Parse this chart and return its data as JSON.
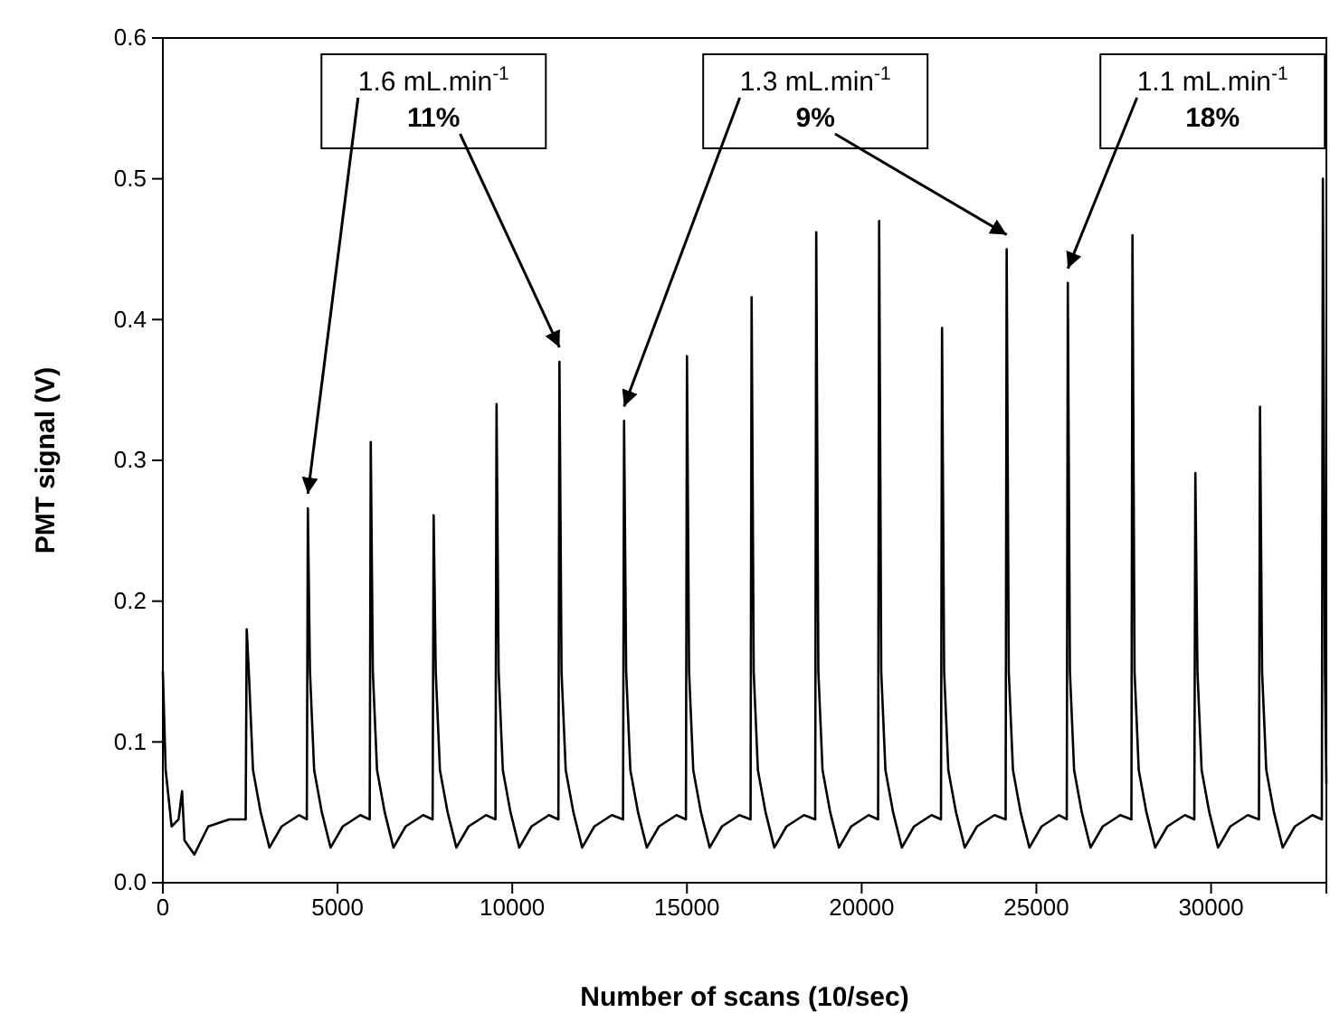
{
  "chart_data": {
    "type": "line",
    "xlabel": "Number of scans (10/sec)",
    "ylabel": "PMT signal (V)",
    "xlim": [
      0,
      33300
    ],
    "ylim": [
      0,
      0.6
    ],
    "xticks": [
      0,
      5000,
      10000,
      15000,
      20000,
      25000,
      30000
    ],
    "yticks": [
      {
        "value": 0,
        "label": "0.0"
      },
      {
        "value": 0.1,
        "label": "0.1"
      },
      {
        "value": 0.2,
        "label": "0.2"
      },
      {
        "value": 0.3,
        "label": "0.3"
      },
      {
        "value": 0.4,
        "label": "0.4"
      },
      {
        "value": 0.5,
        "label": "0.5"
      },
      {
        "value": 0.6,
        "label": "0.6"
      }
    ],
    "grid": false,
    "line_style": "solid",
    "marker": "none",
    "annotations": [
      {
        "text": "1.6 mL.min$^{-1}$",
        "x": 4150,
        "y": 0.266
      },
      {
        "text": "11%",
        "x": 11350,
        "y": 0.37
      },
      {
        "text": "1.3 mL.min$^{-1}$",
        "x": 13200,
        "y": 0.328
      },
      {
        "text": "9%",
        "x": 24150,
        "y": 0.45
      },
      {
        "text": "1.1 mL.min$^{-1}$",
        "x": 25900,
        "y": 0.426
      },
      "18%"
    ],
    "series": [
      {
        "color": "#000000",
        "x": [
          0,
          80,
          250,
          450,
          550,
          620,
          900,
          1300,
          1900,
          2370,
          2400,
          2460,
          2580,
          2800,
          3050,
          3400,
          3900,
          4120,
          4150,
          4210,
          4330,
          4550,
          4800,
          5150,
          5650,
          5920,
          5950,
          6010,
          6130,
          6350,
          6600,
          6950,
          7450,
          7720,
          7750,
          7810,
          7930,
          8150,
          8400,
          8750,
          9250,
          9520,
          9550,
          9610,
          9730,
          9950,
          10200,
          10550,
          11050,
          11320,
          11350,
          11410,
          11530,
          11750,
          12000,
          12350,
          12850,
          13170,
          13200,
          13260,
          13380,
          13600,
          13850,
          14200,
          14700,
          14970,
          15000,
          15060,
          15180,
          15400,
          15650,
          16000,
          16500,
          16820,
          16850,
          16910,
          17030,
          17250,
          17500,
          17850,
          18350,
          18670,
          18700,
          18760,
          18880,
          19100,
          19350,
          19700,
          20200,
          20470,
          20500,
          20560,
          20680,
          20900,
          21150,
          21500,
          22000,
          22270,
          22300,
          22360,
          22480,
          22700,
          22950,
          23300,
          23800,
          24120,
          24150,
          24210,
          24330,
          24550,
          24800,
          25150,
          25650,
          25870,
          25900,
          25960,
          26080,
          26300,
          26550,
          26900,
          27400,
          27720,
          27750,
          27810,
          27930,
          28150,
          28400,
          28750,
          29250,
          29520,
          29550,
          29610,
          29730,
          29950,
          30200,
          30550,
          31050,
          31370,
          31400,
          31460,
          31580,
          31800,
          32050,
          32400,
          32900,
          33170,
          33200,
          33260,
          33300
        ],
        "values": [
          0.15,
          0.08,
          0.04,
          0.045,
          0.065,
          0.03,
          0.02,
          0.04,
          0.045,
          0.045,
          0.18,
          0.15,
          0.08,
          0.05,
          0.025,
          0.04,
          0.048,
          0.045,
          0.266,
          0.15,
          0.08,
          0.05,
          0.025,
          0.04,
          0.048,
          0.045,
          0.313,
          0.15,
          0.08,
          0.05,
          0.025,
          0.04,
          0.048,
          0.045,
          0.261,
          0.15,
          0.08,
          0.05,
          0.025,
          0.04,
          0.048,
          0.045,
          0.34,
          0.15,
          0.08,
          0.05,
          0.025,
          0.04,
          0.048,
          0.045,
          0.37,
          0.15,
          0.08,
          0.05,
          0.025,
          0.04,
          0.048,
          0.045,
          0.328,
          0.15,
          0.08,
          0.05,
          0.025,
          0.04,
          0.048,
          0.045,
          0.374,
          0.15,
          0.08,
          0.05,
          0.025,
          0.04,
          0.048,
          0.045,
          0.416,
          0.15,
          0.08,
          0.05,
          0.025,
          0.04,
          0.048,
          0.045,
          0.462,
          0.15,
          0.08,
          0.05,
          0.025,
          0.04,
          0.048,
          0.045,
          0.47,
          0.15,
          0.08,
          0.05,
          0.025,
          0.04,
          0.048,
          0.045,
          0.394,
          0.15,
          0.08,
          0.05,
          0.025,
          0.04,
          0.048,
          0.045,
          0.45,
          0.15,
          0.08,
          0.05,
          0.025,
          0.04,
          0.048,
          0.045,
          0.426,
          0.15,
          0.08,
          0.05,
          0.025,
          0.04,
          0.048,
          0.045,
          0.46,
          0.15,
          0.08,
          0.05,
          0.025,
          0.04,
          0.048,
          0.045,
          0.291,
          0.15,
          0.08,
          0.05,
          0.025,
          0.04,
          0.048,
          0.045,
          0.338,
          0.15,
          0.08,
          0.05,
          0.025,
          0.04,
          0.048,
          0.045,
          0.5,
          0.15,
          0.07
        ]
      }
    ]
  }
}
